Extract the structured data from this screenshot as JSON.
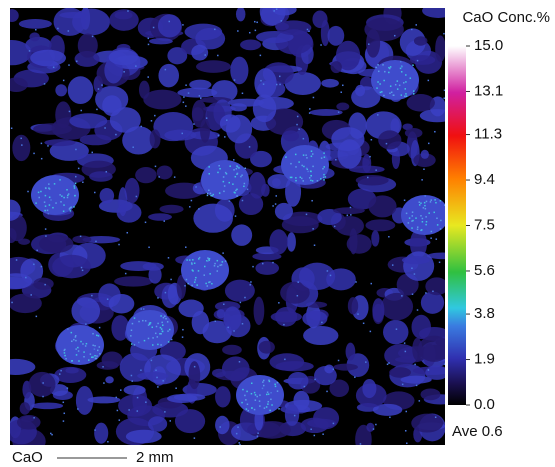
{
  "map": {
    "element": "CaO"
  },
  "colorbar": {
    "title": "CaO  Conc.%",
    "ticks": [
      {
        "value": 15.0,
        "label": "15.0"
      },
      {
        "value": 13.1,
        "label": "13.1"
      },
      {
        "value": 11.3,
        "label": "11.3"
      },
      {
        "value": 9.4,
        "label": "9.4"
      },
      {
        "value": 7.5,
        "label": "7.5"
      },
      {
        "value": 5.6,
        "label": "5.6"
      },
      {
        "value": 3.8,
        "label": "3.8"
      },
      {
        "value": 1.9,
        "label": "1.9"
      },
      {
        "value": 0.0,
        "label": "0.0"
      }
    ],
    "average": "Ave 0.6"
  },
  "scale_bar": {
    "element": "CaO",
    "length": "2 mm"
  }
}
